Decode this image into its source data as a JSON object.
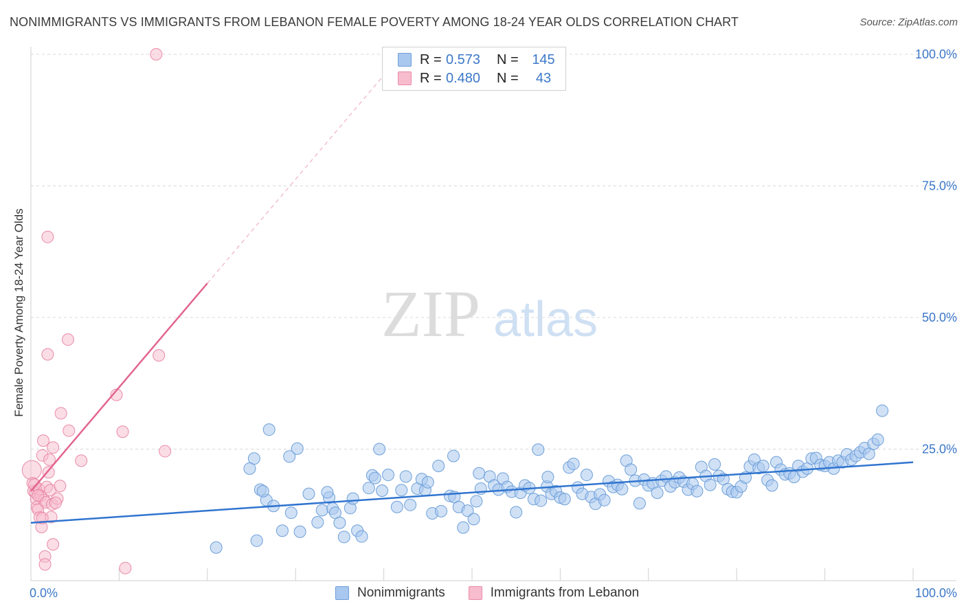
{
  "header": {
    "title": "NONIMMIGRANTS VS IMMIGRANTS FROM LEBANON FEMALE POVERTY AMONG 18-24 YEAR OLDS CORRELATION CHART",
    "source": "Source: ZipAtlas.com"
  },
  "watermark": {
    "zip": "ZIP",
    "atlas": "atlas"
  },
  "legend_top": {
    "rows": [
      {
        "r_label": "R =",
        "r_value": "0.573",
        "n_label": "N =",
        "n_value": "145"
      },
      {
        "r_label": "R =",
        "r_value": "0.480",
        "n_label": "N =",
        "n_value": "43"
      }
    ]
  },
  "legend_bottom": {
    "items": [
      "Nonimmigrants",
      "Immigrants from Lebanon"
    ]
  },
  "colors": {
    "blue_fill": "#a9c8ef",
    "blue_stroke": "#6d9fd8",
    "blue_line": "#2f74cf",
    "pink_fill": "#f7bccd",
    "pink_stroke": "#e98aa8",
    "pink_line": "#e2658f",
    "axis_text": "#3c78c8",
    "grid": "#d8d8d8"
  },
  "chart_data": {
    "type": "scatter",
    "title": "NONIMMIGRANTS VS IMMIGRANTS FROM LEBANON FEMALE POVERTY AMONG 18-24 YEAR OLDS CORRELATION CHART",
    "xlabel": "",
    "ylabel": "Female Poverty Among 18-24 Year Olds",
    "xlim": [
      0,
      100
    ],
    "ylim": [
      0,
      100
    ],
    "x_tick_labels": [
      "0.0%",
      "100.0%"
    ],
    "y_ticks": [
      25,
      50,
      75,
      100
    ],
    "y_tick_labels": [
      "25.0%",
      "50.0%",
      "75.0%",
      "100.0%"
    ],
    "grid": true,
    "legend_position": "top-center",
    "series": [
      {
        "name": "Nonimmigrants",
        "R": 0.573,
        "N": 145,
        "trend": {
          "x": [
            0,
            100
          ],
          "y": [
            11.0,
            22.5
          ]
        },
        "points": [
          [
            21,
            6.3
          ],
          [
            25.3,
            23.2
          ],
          [
            25.6,
            7.6
          ],
          [
            26,
            17.3
          ],
          [
            26.7,
            15.3
          ],
          [
            27,
            28.7
          ],
          [
            27.5,
            14.2
          ],
          [
            28.5,
            9.5
          ],
          [
            29.3,
            23.6
          ],
          [
            29.5,
            12.9
          ],
          [
            30.2,
            25.1
          ],
          [
            30.5,
            9.3
          ],
          [
            31.5,
            16.5
          ],
          [
            32.5,
            11.1
          ],
          [
            33,
            13.4
          ],
          [
            33.8,
            15.8
          ],
          [
            34.2,
            13.7
          ],
          [
            34.5,
            12.9
          ],
          [
            35,
            11.0
          ],
          [
            35.5,
            8.3
          ],
          [
            36.2,
            13.8
          ],
          [
            36.5,
            15.6
          ],
          [
            37,
            9.5
          ],
          [
            37.5,
            8.4
          ],
          [
            38.7,
            20.0
          ],
          [
            39,
            19.5
          ],
          [
            39.5,
            25.0
          ],
          [
            39.8,
            17.1
          ],
          [
            40.5,
            20.1
          ],
          [
            41.5,
            14.0
          ],
          [
            42,
            17.2
          ],
          [
            42.5,
            19.8
          ],
          [
            43,
            14.4
          ],
          [
            43.8,
            17.5
          ],
          [
            44.3,
            19.3
          ],
          [
            44.7,
            17.2
          ],
          [
            45.5,
            12.8
          ],
          [
            46.2,
            21.8
          ],
          [
            46.5,
            13.2
          ],
          [
            47.5,
            16.1
          ],
          [
            47.9,
            23.7
          ],
          [
            48,
            15.9
          ],
          [
            48.5,
            14.0
          ],
          [
            49,
            10.1
          ],
          [
            49.5,
            13.3
          ],
          [
            50.2,
            11.7
          ],
          [
            50.5,
            15.1
          ],
          [
            51,
            17.5
          ],
          [
            52,
            19.8
          ],
          [
            52.5,
            18.1
          ],
          [
            53,
            17.3
          ],
          [
            53.5,
            19.4
          ],
          [
            54,
            17.8
          ],
          [
            54.5,
            16.9
          ],
          [
            55,
            13.0
          ],
          [
            55.5,
            16.7
          ],
          [
            56,
            18.1
          ],
          [
            56.5,
            17.6
          ],
          [
            57,
            15.5
          ],
          [
            57.5,
            24.9
          ],
          [
            57.8,
            15.2
          ],
          [
            58.5,
            17.9
          ],
          [
            59,
            16.5
          ],
          [
            59.5,
            17.0
          ],
          [
            60,
            15.8
          ],
          [
            60.5,
            15.5
          ],
          [
            61,
            21.5
          ],
          [
            61.5,
            22.2
          ],
          [
            62,
            17.7
          ],
          [
            62.5,
            16.5
          ],
          [
            63,
            20.1
          ],
          [
            63.5,
            15.9
          ],
          [
            64,
            14.6
          ],
          [
            64.5,
            16.4
          ],
          [
            65,
            15.3
          ],
          [
            65.5,
            18.9
          ],
          [
            66,
            17.8
          ],
          [
            66.5,
            18.2
          ],
          [
            67,
            17.4
          ],
          [
            67.5,
            22.8
          ],
          [
            68,
            21.1
          ],
          [
            68.5,
            19.0
          ],
          [
            69,
            14.7
          ],
          [
            69.5,
            19.2
          ],
          [
            70,
            18.1
          ],
          [
            70.5,
            18.5
          ],
          [
            71,
            16.7
          ],
          [
            71.5,
            19.0
          ],
          [
            72,
            19.8
          ],
          [
            72.5,
            17.9
          ],
          [
            73,
            18.7
          ],
          [
            73.5,
            19.6
          ],
          [
            74,
            18.8
          ],
          [
            74.5,
            17.3
          ],
          [
            75,
            18.4
          ],
          [
            75.5,
            17.0
          ],
          [
            76,
            21.6
          ],
          [
            76.5,
            19.9
          ],
          [
            77,
            18.2
          ],
          [
            77.5,
            22.1
          ],
          [
            78,
            19.9
          ],
          [
            78.5,
            19.3
          ],
          [
            79,
            17.4
          ],
          [
            79.5,
            16.9
          ],
          [
            80,
            16.8
          ],
          [
            80.5,
            17.9
          ],
          [
            81,
            19.6
          ],
          [
            81.5,
            21.7
          ],
          [
            82,
            23.0
          ],
          [
            82.5,
            21.4
          ],
          [
            83,
            21.8
          ],
          [
            83.5,
            19.1
          ],
          [
            84,
            18.1
          ],
          [
            84.5,
            22.5
          ],
          [
            85,
            21.1
          ],
          [
            85.5,
            20.2
          ],
          [
            86,
            20.4
          ],
          [
            86.5,
            19.7
          ],
          [
            87,
            21.8
          ],
          [
            87.5,
            20.7
          ],
          [
            88,
            21.3
          ],
          [
            88.5,
            23.2
          ],
          [
            89,
            23.3
          ],
          [
            89.5,
            22.0
          ],
          [
            90,
            21.8
          ],
          [
            90.5,
            22.5
          ],
          [
            91,
            21.3
          ],
          [
            91.5,
            22.8
          ],
          [
            92,
            22.5
          ],
          [
            92.5,
            24.0
          ],
          [
            93,
            23.0
          ],
          [
            93.5,
            23.7
          ],
          [
            94,
            24.4
          ],
          [
            94.5,
            25.2
          ],
          [
            95,
            24.1
          ],
          [
            95.5,
            26.0
          ],
          [
            96,
            26.8
          ],
          [
            96.5,
            32.3
          ],
          [
            24.8,
            21.3
          ],
          [
            26.3,
            17.0
          ],
          [
            33.6,
            16.8
          ],
          [
            38.3,
            17.6
          ],
          [
            45,
            18.7
          ],
          [
            50.8,
            20.4
          ],
          [
            58.6,
            19.7
          ]
        ]
      },
      {
        "name": "Immigrants from Lebanon",
        "R": 0.48,
        "N": 43,
        "trend": {
          "x": [
            0,
            20
          ],
          "y": [
            17.0,
            56.5
          ]
        },
        "trend_dashed": {
          "x": [
            20,
            40.5
          ],
          "y": [
            56.5,
            97
          ]
        },
        "points": [
          [
            0.1,
            21.0
          ],
          [
            0.2,
            18.5
          ],
          [
            0.3,
            17.0
          ],
          [
            0.5,
            16.8
          ],
          [
            0.6,
            15.5
          ],
          [
            0.7,
            14.0
          ],
          [
            0.8,
            13.5
          ],
          [
            0.9,
            17.4
          ],
          [
            1.0,
            12.0
          ],
          [
            1.1,
            16.1
          ],
          [
            1.2,
            10.2
          ],
          [
            1.3,
            23.8
          ],
          [
            1.4,
            26.6
          ],
          [
            1.5,
            15.3
          ],
          [
            1.6,
            4.6
          ],
          [
            1.6,
            3.1
          ],
          [
            1.7,
            14.9
          ],
          [
            1.8,
            17.8
          ],
          [
            1.9,
            65.3
          ],
          [
            1.9,
            43.0
          ],
          [
            2.0,
            20.6
          ],
          [
            2.1,
            23.0
          ],
          [
            2.2,
            17.2
          ],
          [
            2.3,
            12.1
          ],
          [
            2.4,
            14.5
          ],
          [
            2.5,
            25.3
          ],
          [
            2.5,
            6.9
          ],
          [
            3.0,
            15.6
          ],
          [
            3.3,
            18.0
          ],
          [
            3.4,
            31.8
          ],
          [
            4.2,
            45.8
          ],
          [
            4.3,
            28.5
          ],
          [
            5.7,
            22.8
          ],
          [
            9.7,
            35.3
          ],
          [
            10.4,
            28.3
          ],
          [
            10.7,
            2.4
          ],
          [
            14.2,
            100
          ],
          [
            14.5,
            42.8
          ],
          [
            15.2,
            24.6
          ],
          [
            0.4,
            18.3
          ],
          [
            0.8,
            16.2
          ],
          [
            1.3,
            11.9
          ],
          [
            2.8,
            14.8
          ]
        ]
      }
    ]
  }
}
